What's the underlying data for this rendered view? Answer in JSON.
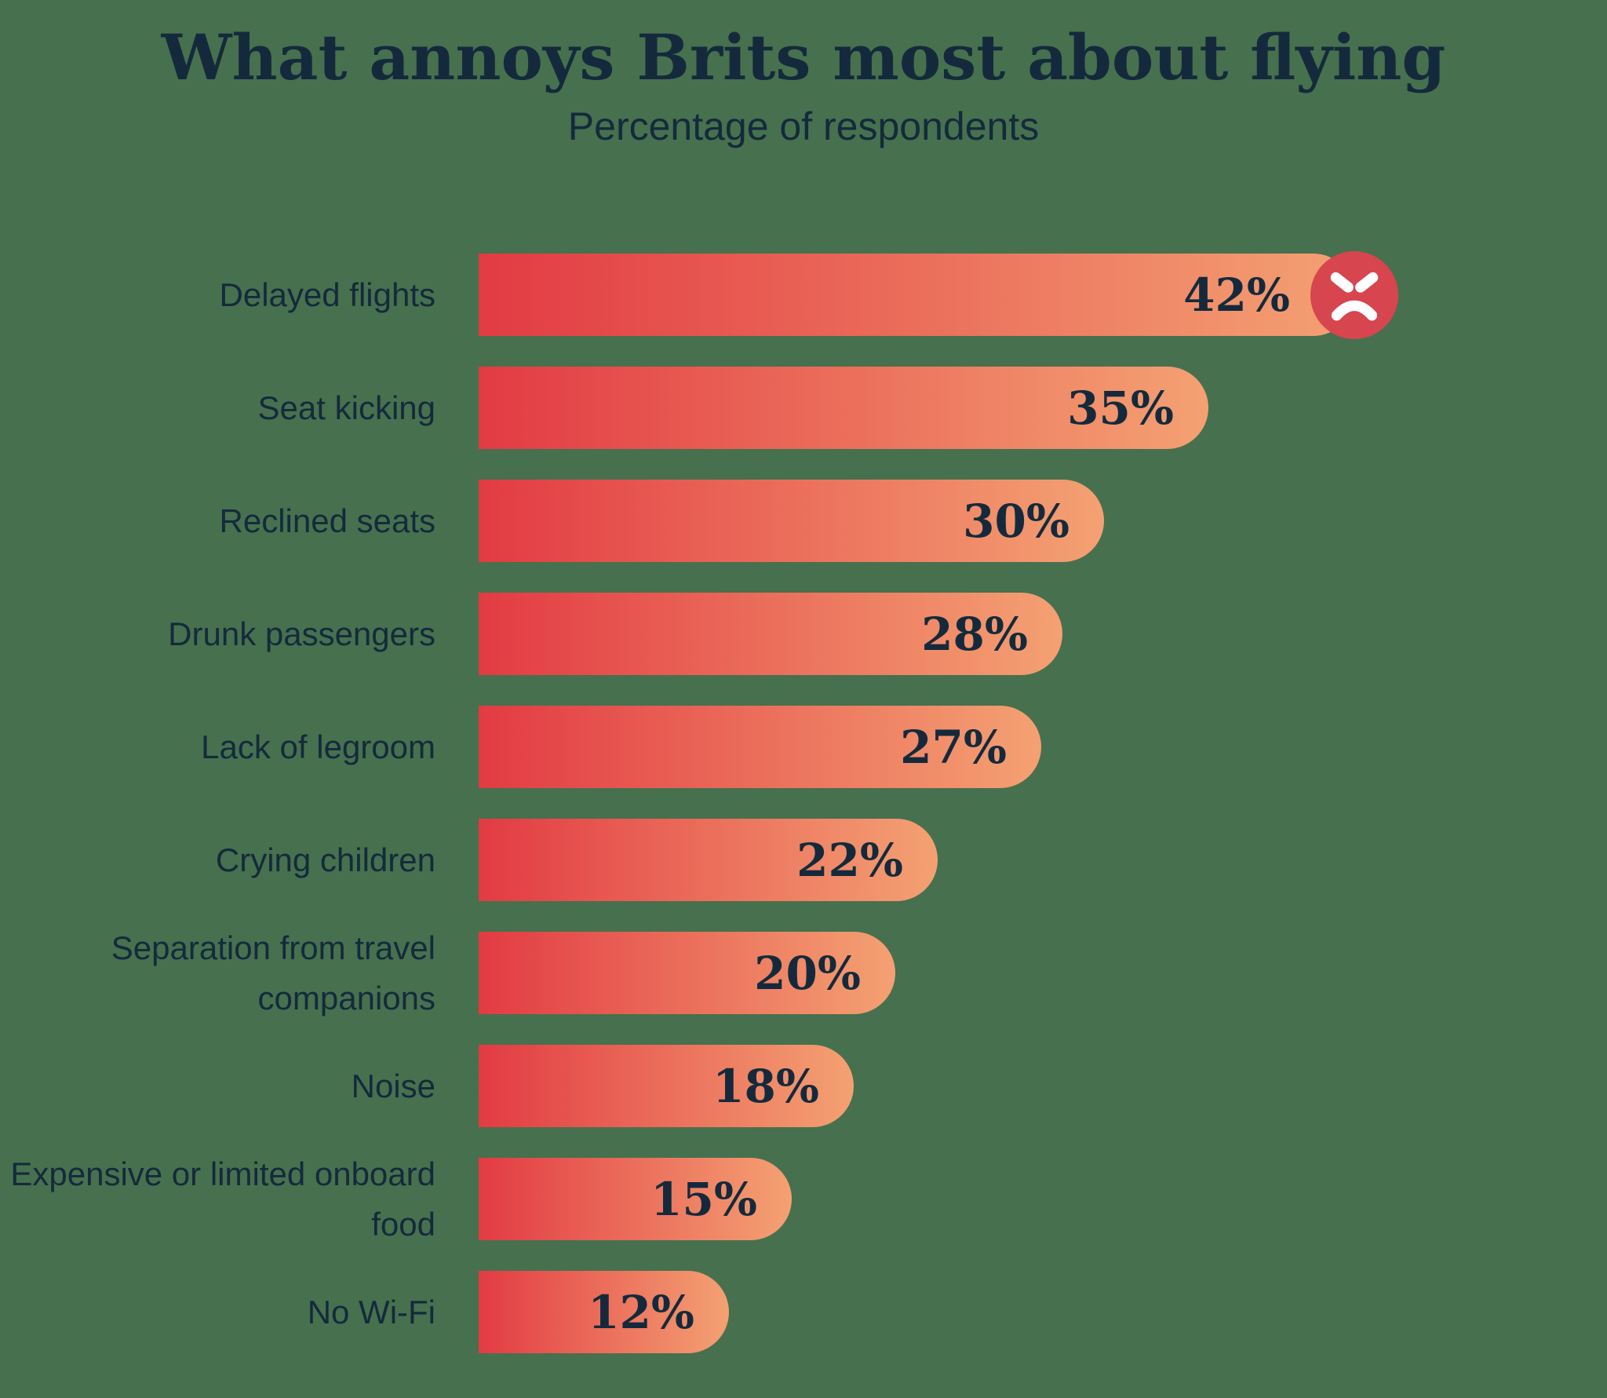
{
  "title": "What annoys Brits most about flying",
  "subtitle": "Percentage of respondents",
  "colors": {
    "background": "#47704E",
    "text_navy": "#142A3C",
    "bar_gradient_start": "#E23B43",
    "bar_gradient_end": "#F4A173",
    "icon_background": "#D7454F",
    "icon_face": "#FFFFFF"
  },
  "icons": [
    {
      "name": "angry-face-icon",
      "meaning": "angry face on the top bar"
    }
  ],
  "chart_data": {
    "type": "bar",
    "orientation": "horizontal",
    "title": "What annoys Brits most about flying",
    "subtitle": "Percentage of respondents",
    "xlabel": "Percentage of respondents",
    "ylabel": "",
    "categories": [
      "Delayed flights",
      "Seat kicking",
      "Reclined seats",
      "Drunk passengers",
      "Lack of legroom",
      "Crying children",
      "Separation from travel companions",
      "Noise",
      "Expensive or limited onboard food",
      "No Wi-Fi"
    ],
    "values": [
      42,
      35,
      30,
      28,
      27,
      22,
      20,
      18,
      15,
      12
    ],
    "value_labels": [
      "42%",
      "35%",
      "30%",
      "28%",
      "27%",
      "22%",
      "20%",
      "18%",
      "15%",
      "12%"
    ],
    "xlim": [
      0,
      42
    ],
    "grid": false,
    "legend": false,
    "annotation": {
      "row_index": 0,
      "icon": "angry-face-icon"
    }
  }
}
